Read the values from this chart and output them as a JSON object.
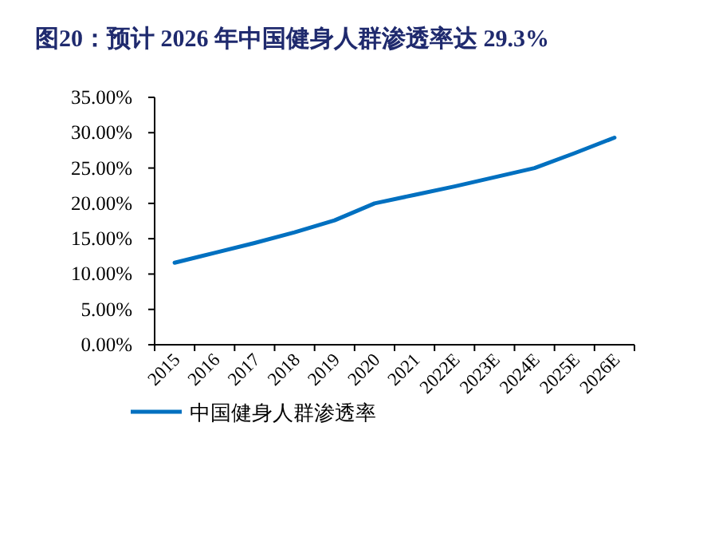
{
  "chart_data": {
    "type": "line",
    "title": "图20：预计 2026 年中国健身人群渗透率达 29.3%",
    "categories": [
      "2015",
      "2016",
      "2017",
      "2018",
      "2019",
      "2020",
      "2021",
      "2022E",
      "2023E",
      "2024E",
      "2025E",
      "2026E"
    ],
    "series": [
      {
        "name": "中国健身人群渗透率",
        "color": "#0070c0",
        "values": [
          11.6,
          13.0,
          14.4,
          15.9,
          17.6,
          20.0,
          21.2,
          22.4,
          23.7,
          25.0,
          27.1,
          29.3
        ]
      }
    ],
    "ylim": [
      0,
      35
    ],
    "yticks": [
      {
        "value": 0,
        "label": "0.00%"
      },
      {
        "value": 5,
        "label": "5.00%"
      },
      {
        "value": 10,
        "label": "10.00%"
      },
      {
        "value": 15,
        "label": "15.00%"
      },
      {
        "value": 20,
        "label": "20.00%"
      },
      {
        "value": 25,
        "label": "25.00%"
      },
      {
        "value": 30,
        "label": "30.00%"
      },
      {
        "value": 35,
        "label": "35.00%"
      }
    ],
    "legend": "bottom",
    "grid": false,
    "marker": "none",
    "line_style": "solid"
  }
}
